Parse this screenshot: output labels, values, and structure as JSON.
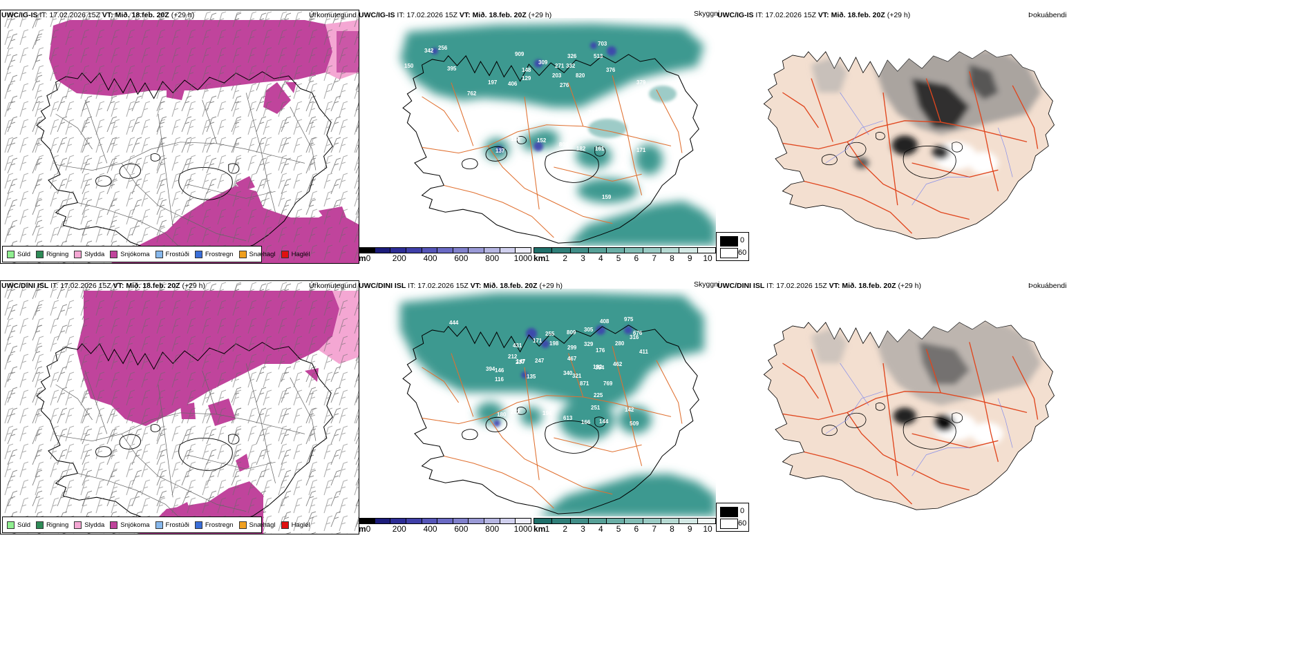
{
  "rows": [
    {
      "model": "UWC/IG-IS",
      "it_label": "IT:",
      "it_value": "17.02.2026 15Z",
      "vt_label": "VT:",
      "vt_value": "Mið. 18.feb. 20Z",
      "lead": "(+29 h)",
      "panels": {
        "precip": {
          "title": "Úrkomutegund"
        },
        "cloud": {
          "title": "Skyggni",
          "labels": [
            "342",
            "256",
            "395",
            "150",
            "762",
            "197",
            "909",
            "148",
            "129",
            "406",
            "309",
            "271",
            "326",
            "332",
            "203",
            "820",
            "703",
            "513",
            "376",
            "276",
            "379",
            "737",
            "128",
            "137",
            "152",
            "808",
            "182",
            "161",
            "171",
            "159"
          ]
        },
        "fog": {
          "title": "Þokuábendi"
        }
      }
    },
    {
      "model": "UWC/DINI ISL",
      "it_label": "IT:",
      "it_value": "17.02.2026 15Z",
      "vt_label": "VT:",
      "vt_value": "Mið. 18.feb. 20Z",
      "lead": "(+29 h)",
      "panels": {
        "precip": {
          "title": "Úrkomutegund"
        },
        "cloud": {
          "title": "Skyggni",
          "labels": [
            "444",
            "431",
            "255",
            "171",
            "198",
            "809",
            "305",
            "408",
            "975",
            "676",
            "394",
            "212",
            "237",
            "146",
            "116",
            "147",
            "247",
            "299",
            "467",
            "329",
            "176",
            "280",
            "316",
            "411",
            "135",
            "340",
            "321",
            "182",
            "354",
            "462",
            "871",
            "769",
            "225",
            "251",
            "202",
            "194",
            "613",
            "166",
            "144",
            "142",
            "509",
            "665",
            "180"
          ]
        },
        "fog": {
          "title": "Þokuábendi"
        }
      }
    }
  ],
  "precip_legend": [
    {
      "label": "Súld",
      "color": "#90ee90"
    },
    {
      "label": "Rigning",
      "color": "#2e8b57"
    },
    {
      "label": "Slydda",
      "color": "#f4a7d3"
    },
    {
      "label": "Snjókoma",
      "color": "#c0449c"
    },
    {
      "label": "Frostúði",
      "color": "#87b8ec"
    },
    {
      "label": "Frostregn",
      "color": "#3a6ed8"
    },
    {
      "label": "Snæhagl",
      "color": "#f0a020"
    },
    {
      "label": "Haglél",
      "color": "#e01010"
    }
  ],
  "ceiling_scale": {
    "unit": "m",
    "ticks": [
      "0",
      "200",
      "400",
      "600",
      "800",
      "1000"
    ],
    "colors": [
      "#000000",
      "#1c1c7a",
      "#2d2d96",
      "#3f3fa8",
      "#5555b8",
      "#6a6ac4",
      "#8080cc",
      "#9a9ad6",
      "#b5b5e2",
      "#d0d0ee",
      "#ececf8"
    ]
  },
  "visibility_scale": {
    "unit": "km",
    "ticks": [
      "1",
      "2",
      "3",
      "4",
      "5",
      "6",
      "7",
      "8",
      "9",
      "10"
    ],
    "colors": [
      "#1f6f6a",
      "#2f7f79",
      "#418e88",
      "#56a097",
      "#6aaea6",
      "#82bdb5",
      "#9acbc4",
      "#b6dad3",
      "#d3e9e5",
      "#f0f7f5"
    ]
  },
  "fog_scale": {
    "max": "0",
    "min": "60"
  },
  "colors": {
    "snow": "#c0449c",
    "sleet": "#f4a7d3",
    "teal": "#3e9990",
    "roads": "#e07030",
    "land": "#f3dfd0"
  }
}
